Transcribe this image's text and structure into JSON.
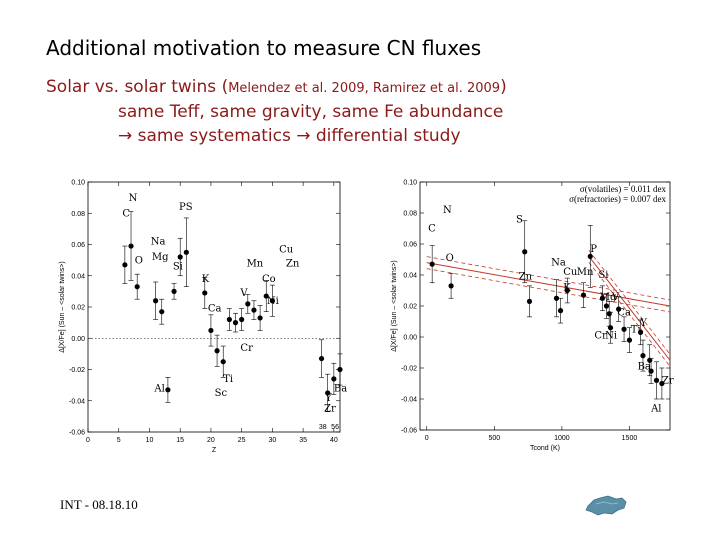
{
  "slide": {
    "title": "Additional motivation to measure CN fluxes",
    "subtitle_main": "Solar vs. solar twins (",
    "subtitle_cite": "Melendez et al. 2009, Ramirez et al. 2009",
    "subtitle_end": ")",
    "line2": "same Teff, same gravity, same Fe abundance",
    "line3_a": "same systematics",
    "line3_b": "differential study",
    "arrow": "→",
    "footer": "INT - 08.18.10"
  },
  "colors": {
    "text_accent": "#8b1a1a",
    "fit_line": "#c0392b"
  },
  "chart_data": [
    {
      "type": "scatter",
      "xlabel": "Z",
      "ylabel": "Δ[X/Fe] (Sun – <solar twins>)",
      "xlim": [
        0,
        41
      ],
      "ylim": [
        -0.06,
        0.1
      ],
      "xticks": [
        0,
        5,
        10,
        15,
        20,
        25,
        30,
        35,
        40
      ],
      "xtick_labels": [
        "0",
        "5",
        "10",
        "15",
        "20",
        "25",
        "30",
        "35",
        "40"
      ],
      "yticks": [
        -0.06,
        -0.04,
        -0.02,
        0.0,
        0.02,
        0.04,
        0.06,
        0.08,
        0.1
      ],
      "ytick_labels": [
        "-0.06",
        "-0.04",
        "-0.02",
        "0.00",
        "0.02",
        "0.04",
        "0.06",
        "0.08",
        "0.10"
      ],
      "axis_break_labels": [
        "38",
        "56"
      ],
      "reference_line_y": 0,
      "points": [
        {
          "x": 6,
          "y": 0.047,
          "err": 0.012
        },
        {
          "x": 7,
          "y": 0.059,
          "err": 0.022
        },
        {
          "x": 8,
          "y": 0.033,
          "err": 0.008
        },
        {
          "x": 11,
          "y": 0.024,
          "err": 0.012
        },
        {
          "x": 12,
          "y": 0.017,
          "err": 0.008
        },
        {
          "x": 13,
          "y": -0.033,
          "err": 0.008
        },
        {
          "x": 14,
          "y": 0.03,
          "err": 0.005
        },
        {
          "x": 15,
          "y": 0.052,
          "err": 0.012
        },
        {
          "x": 16,
          "y": 0.055,
          "err": 0.022
        },
        {
          "x": 19,
          "y": 0.029,
          "err": 0.01
        },
        {
          "x": 20,
          "y": 0.005,
          "err": 0.01
        },
        {
          "x": 21,
          "y": -0.008,
          "err": 0.01
        },
        {
          "x": 22,
          "y": -0.015,
          "err": 0.01
        },
        {
          "x": 23,
          "y": 0.012,
          "err": 0.007
        },
        {
          "x": 24,
          "y": 0.01,
          "err": 0.006
        },
        {
          "x": 25,
          "y": 0.012,
          "err": 0.007
        },
        {
          "x": 26,
          "y": 0.022,
          "err": 0.006
        },
        {
          "x": 27,
          "y": 0.018,
          "err": 0.006
        },
        {
          "x": 28,
          "y": 0.013,
          "err": 0.008
        },
        {
          "x": 29,
          "y": 0.027,
          "err": 0.01
        },
        {
          "x": 30,
          "y": 0.024,
          "err": 0.01
        },
        {
          "x": 38,
          "y": -0.013,
          "err": 0.012
        },
        {
          "x": 39,
          "y": -0.035,
          "err": 0.012
        },
        {
          "x": 40,
          "y": -0.026,
          "err": 0.01
        },
        {
          "x": 41,
          "y": -0.02,
          "err": 0.01
        }
      ],
      "annotations": [
        {
          "text": "N",
          "x": 6.6,
          "y": 0.088
        },
        {
          "text": "C",
          "x": 5.6,
          "y": 0.078
        },
        {
          "text": "O",
          "x": 7.6,
          "y": 0.048
        },
        {
          "text": "Na",
          "x": 10.2,
          "y": 0.06
        },
        {
          "text": "Mg",
          "x": 10.4,
          "y": 0.05
        },
        {
          "text": "Si",
          "x": 13.8,
          "y": 0.044
        },
        {
          "text": "P",
          "x": 14.8,
          "y": 0.082
        },
        {
          "text": "S",
          "x": 15.9,
          "y": 0.082
        },
        {
          "text": "Al",
          "x": 10.8,
          "y": -0.034
        },
        {
          "text": "K",
          "x": 18.5,
          "y": 0.036
        },
        {
          "text": "Ca",
          "x": 19.5,
          "y": 0.017
        },
        {
          "text": "Sc",
          "x": 20.6,
          "y": -0.037
        },
        {
          "text": "Ti",
          "x": 22.0,
          "y": -0.028
        },
        {
          "text": "V",
          "x": 24.8,
          "y": 0.027
        },
        {
          "text": "Cr",
          "x": 24.8,
          "y": -0.008
        },
        {
          "text": "Mn",
          "x": 25.8,
          "y": 0.046
        },
        {
          "text": "Co",
          "x": 28.3,
          "y": 0.036
        },
        {
          "text": "Ni",
          "x": 29.1,
          "y": 0.022
        },
        {
          "text": "Cu",
          "x": 31.1,
          "y": 0.055
        },
        {
          "text": "Zn",
          "x": 32.2,
          "y": 0.046
        },
        {
          "text": "Y",
          "x": 38.6,
          "y": -0.04
        },
        {
          "text": "Zr",
          "x": 38.4,
          "y": -0.047
        },
        {
          "text": "Ba",
          "x": 40.0,
          "y": -0.034
        }
      ]
    },
    {
      "type": "scatter",
      "xlabel": "Tcond (K)",
      "ylabel": "Δ[X/Fe] (Sun – <solar twins>)",
      "xlim": [
        -50,
        1800
      ],
      "ylim": [
        -0.06,
        0.1
      ],
      "xticks": [
        0,
        500,
        1000,
        1500
      ],
      "xtick_labels": [
        "0",
        "500",
        "1000",
        "1500"
      ],
      "yticks": [
        -0.06,
        -0.04,
        -0.02,
        0.0,
        0.02,
        0.04,
        0.06,
        0.08,
        0.1
      ],
      "ytick_labels": [
        "-0.06",
        "-0.04",
        "-0.02",
        "0.00",
        "0.02",
        "0.04",
        "0.06",
        "0.08",
        "0.10"
      ],
      "legend": [
        "σ(volatiles) = 0.011 dex",
        "σ(refractories) = 0.007 dex"
      ],
      "legend_position": "top-right",
      "fit_lines": [
        {
          "x": [
            0,
            1800
          ],
          "y": [
            0.048,
            0.02
          ]
        },
        {
          "x": [
            1200,
            1800
          ],
          "y": [
            0.052,
            -0.015
          ]
        }
      ],
      "points": [
        {
          "x": 40,
          "y": 0.047,
          "err": 0.012
        },
        {
          "x": 180,
          "y": 0.033,
          "err": 0.008
        },
        {
          "x": 725,
          "y": 0.055,
          "err": 0.02
        },
        {
          "x": 760,
          "y": 0.023,
          "err": 0.01
        },
        {
          "x": 960,
          "y": 0.025,
          "err": 0.012
        },
        {
          "x": 990,
          "y": 0.017,
          "err": 0.008
        },
        {
          "x": 1040,
          "y": 0.03,
          "err": 0.008
        },
        {
          "x": 1160,
          "y": 0.027,
          "err": 0.008
        },
        {
          "x": 1210,
          "y": 0.052,
          "err": 0.02
        },
        {
          "x": 1300,
          "y": 0.025,
          "err": 0.008
        },
        {
          "x": 1330,
          "y": 0.02,
          "err": 0.008
        },
        {
          "x": 1350,
          "y": 0.015,
          "err": 0.008
        },
        {
          "x": 1360,
          "y": 0.006,
          "err": 0.01
        },
        {
          "x": 1420,
          "y": 0.018,
          "err": 0.008
        },
        {
          "x": 1460,
          "y": 0.005,
          "err": 0.008
        },
        {
          "x": 1500,
          "y": -0.002,
          "err": 0.008
        },
        {
          "x": 1582,
          "y": 0.003,
          "err": 0.008
        },
        {
          "x": 1600,
          "y": -0.012,
          "err": 0.01
        },
        {
          "x": 1650,
          "y": -0.015,
          "err": 0.01
        },
        {
          "x": 1660,
          "y": -0.022,
          "err": 0.008
        },
        {
          "x": 1700,
          "y": -0.028,
          "err": 0.012
        },
        {
          "x": 1740,
          "y": -0.03,
          "err": 0.01
        }
      ],
      "annotations": [
        {
          "text": "N",
          "x": 120,
          "y": 0.08
        },
        {
          "text": "C",
          "x": 10,
          "y": 0.068
        },
        {
          "text": "O",
          "x": 140,
          "y": 0.049
        },
        {
          "text": "S",
          "x": 660,
          "y": 0.074
        },
        {
          "text": "Zn",
          "x": 680,
          "y": 0.037
        },
        {
          "text": "Na",
          "x": 920,
          "y": 0.046
        },
        {
          "text": "Cu",
          "x": 1010,
          "y": 0.04
        },
        {
          "text": "Mn",
          "x": 1110,
          "y": 0.04
        },
        {
          "text": "K",
          "x": 1010,
          "y": 0.03
        },
        {
          "text": "P",
          "x": 1210,
          "y": 0.055
        },
        {
          "text": "Si",
          "x": 1270,
          "y": 0.038
        },
        {
          "text": "Mg",
          "x": 1280,
          "y": 0.024
        },
        {
          "text": "V",
          "x": 1370,
          "y": 0.024
        },
        {
          "text": "Ca",
          "x": 1410,
          "y": 0.014
        },
        {
          "text": "Ti",
          "x": 1510,
          "y": 0.003
        },
        {
          "text": "Y",
          "x": 1580,
          "y": 0.007
        },
        {
          "text": "Cr",
          "x": 1240,
          "y": -0.001
        },
        {
          "text": "Ni",
          "x": 1320,
          "y": -0.001
        },
        {
          "text": "Ba",
          "x": 1560,
          "y": -0.021
        },
        {
          "text": "Zr",
          "x": 1740,
          "y": -0.03
        },
        {
          "text": "Al",
          "x": 1660,
          "y": -0.048
        }
      ]
    }
  ]
}
